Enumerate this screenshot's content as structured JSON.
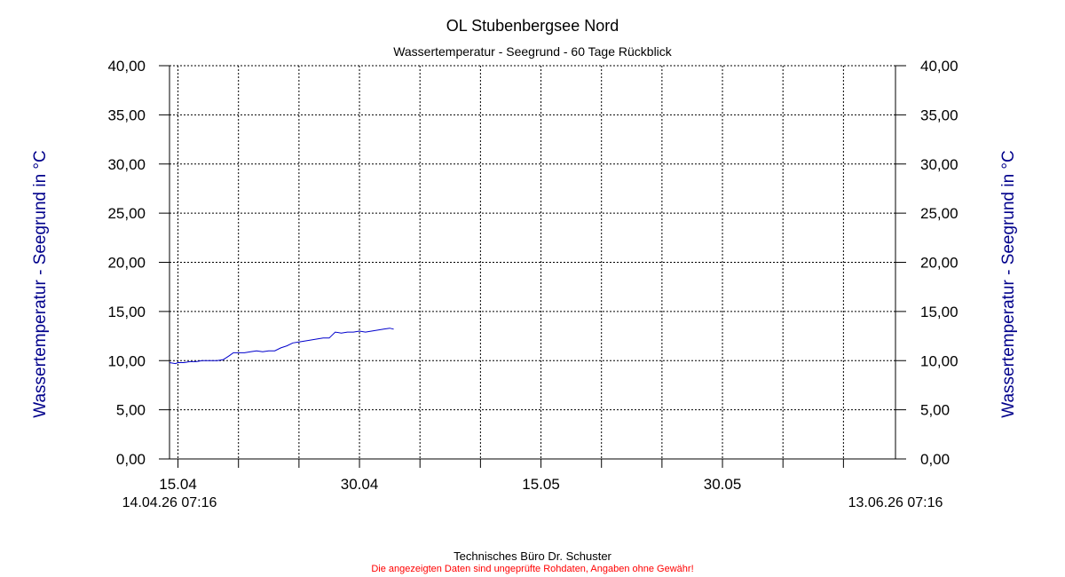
{
  "chart_data": {
    "type": "line",
    "title": "OL Stubenbergsee Nord",
    "subtitle": "Wassertemperatur - Seegrund - 60 Tage Rückblick",
    "ylabel": "Wassertemperatur - Seegrund in °C",
    "ylim": [
      0,
      40
    ],
    "y_ticks": [
      "0,00",
      "5,00",
      "10,00",
      "15,00",
      "20,00",
      "25,00",
      "30,00",
      "35,00",
      "40,00"
    ],
    "x_start": "14.04.26 07:16",
    "x_end": "13.06.26 07:16",
    "x_tick_labels": [
      {
        "label": "15.04",
        "day": 0.7
      },
      {
        "label": "30.04",
        "day": 15.7
      },
      {
        "label": "15.05",
        "day": 30.7
      },
      {
        "label": "30.05",
        "day": 45.7
      }
    ],
    "x_tick_days": [
      0.7,
      5.7,
      10.7,
      15.7,
      20.7,
      25.7,
      30.7,
      35.7,
      40.7,
      45.7,
      50.7,
      55.7
    ],
    "grid": true,
    "line_color": "#0000cc",
    "series": [
      {
        "name": "",
        "x": [
          "14.04.26 07:16",
          "14.04.26 19:00",
          "15.04.26 00:00",
          "15.04.26 12:00",
          "16.04.26 00:00",
          "16.04.26 12:00",
          "17.04.26 00:00",
          "17.04.26 07:00",
          "18.04.26 06:00",
          "18.04.26 18:00",
          "19.04.26 00:00",
          "19.04.26 06:00",
          "19.04.26 14:00",
          "20.04.26 00:00",
          "20.04.26 12:00",
          "21.04.26 00:00",
          "21.04.26 12:00",
          "22.04.26 00:00",
          "22.04.26 12:00",
          "23.04.26 00:00",
          "23.04.26 12:00",
          "24.04.26 00:00",
          "24.04.26 12:00",
          "25.04.26 00:00",
          "25.04.26 12:00",
          "26.04.26 00:00",
          "26.04.26 12:00",
          "27.04.26 00:00",
          "27.04.26 12:00",
          "28.04.26 00:00",
          "28.04.26 12:00",
          "29.04.26 00:00",
          "29.04.26 12:00",
          "30.04.26 00:00",
          "30.04.26 12:00",
          "01.05.26 00:00",
          "01.05.26 12:00",
          "02.05.26 00:00",
          "02.05.26 12:00",
          "02.05.26 20:00"
        ],
        "values": [
          9.8,
          9.7,
          9.8,
          9.8,
          9.9,
          9.9,
          10.0,
          10.0,
          10.0,
          10.1,
          10.3,
          10.5,
          10.8,
          10.8,
          10.8,
          10.9,
          11.0,
          10.9,
          11.0,
          11.0,
          11.3,
          11.5,
          11.8,
          11.9,
          12.0,
          12.1,
          12.2,
          12.3,
          12.3,
          12.9,
          12.8,
          12.9,
          12.9,
          13.0,
          12.9,
          13.0,
          13.1,
          13.2,
          13.3,
          13.2
        ]
      }
    ]
  },
  "footer": {
    "company": "Technisches Büro Dr. Schuster",
    "disclaimer": "Die angezeigten Daten sind ungeprüfte Rohdaten, Angaben ohne Gewähr!"
  }
}
